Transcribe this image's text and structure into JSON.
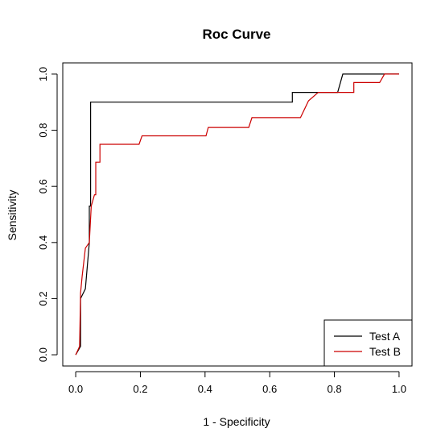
{
  "chart_data": {
    "type": "line",
    "title": "Roc Curve",
    "xlabel": "1 - Specificity",
    "ylabel": "Sensitivity",
    "xlim": [
      -0.04,
      1.04
    ],
    "ylim": [
      -0.04,
      1.04
    ],
    "x_ticks": [
      "0.0",
      "0.2",
      "0.4",
      "0.6",
      "0.8",
      "1.0"
    ],
    "x_tick_values": [
      0,
      0.2,
      0.4,
      0.6,
      0.8,
      1.0
    ],
    "y_ticks": [
      "0.0",
      "0.2",
      "0.4",
      "0.6",
      "0.8",
      "1.0"
    ],
    "y_tick_values": [
      0,
      0.2,
      0.4,
      0.6,
      0.8,
      1.0
    ],
    "grid": false,
    "legend_position": "bottom-right",
    "series": [
      {
        "name": "Test A",
        "color": "#000000",
        "x": [
          0.0,
          0.015,
          0.015,
          0.03,
          0.042,
          0.042,
          0.046,
          0.046,
          0.67,
          0.67,
          0.81,
          0.826,
          0.826,
          0.955,
          0.955,
          1.0
        ],
        "y": [
          0.0,
          0.03,
          0.2,
          0.235,
          0.4,
          0.53,
          0.53,
          0.9,
          0.9,
          0.935,
          0.935,
          1.0,
          1.0,
          1.0,
          1.0,
          1.0
        ]
      },
      {
        "name": "Test B",
        "color": "#cc0000",
        "x": [
          0.0,
          0.012,
          0.015,
          0.02,
          0.03,
          0.042,
          0.048,
          0.058,
          0.062,
          0.062,
          0.07,
          0.075,
          0.075,
          0.196,
          0.205,
          0.403,
          0.41,
          0.535,
          0.545,
          0.695,
          0.72,
          0.75,
          0.8,
          0.86,
          0.86,
          0.94,
          0.955,
          1.0
        ],
        "y": [
          0.0,
          0.03,
          0.22,
          0.28,
          0.38,
          0.4,
          0.53,
          0.57,
          0.57,
          0.686,
          0.686,
          0.686,
          0.75,
          0.75,
          0.78,
          0.78,
          0.81,
          0.81,
          0.845,
          0.845,
          0.905,
          0.935,
          0.935,
          0.935,
          0.97,
          0.97,
          1.0,
          1.0
        ]
      }
    ]
  }
}
